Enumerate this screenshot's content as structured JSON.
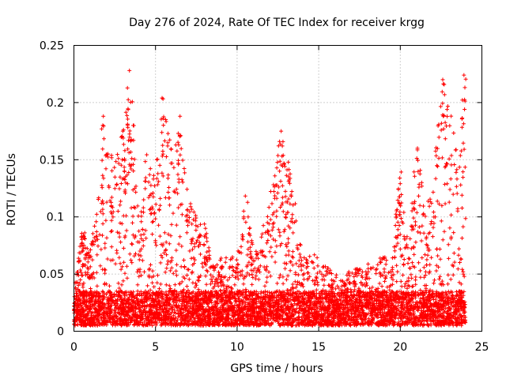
{
  "chart_data": {
    "type": "scatter",
    "title": "Day 276 of 2024, Rate Of TEC Index for receiver krgg",
    "xlabel": "GPS time / hours",
    "ylabel": "ROTI / TECUs",
    "xlim": [
      0,
      25
    ],
    "ylim": [
      0,
      0.25
    ],
    "grid": true,
    "x_ticks": [
      "0",
      "5",
      "10",
      "15",
      "20",
      "25"
    ],
    "y_ticks": [
      "0",
      "0.05",
      "0.1",
      "0.15",
      "0.2",
      "0.25"
    ],
    "marker": "+",
    "color": "#ff0000",
    "series": [
      {
        "name": "ROTI",
        "profile_hours": [
          0,
          0.5,
          1,
          1.5,
          2,
          2.5,
          3,
          3.5,
          4,
          4.5,
          5,
          5.5,
          6,
          6.5,
          7,
          7.5,
          8,
          8.5,
          9,
          9.5,
          10,
          10.5,
          11,
          11.5,
          12,
          12.5,
          13,
          13.5,
          14,
          14.5,
          15,
          15.5,
          16,
          16.5,
          17,
          17.5,
          18,
          18.5,
          19,
          19.5,
          20,
          20.5,
          21,
          21.5,
          22,
          22.5,
          23,
          23.5,
          24
        ],
        "profile_upper_roti": [
          0.035,
          0.095,
          0.07,
          0.12,
          0.16,
          0.15,
          0.175,
          0.228,
          0.09,
          0.175,
          0.14,
          0.2,
          0.16,
          0.185,
          0.12,
          0.1,
          0.095,
          0.06,
          0.065,
          0.065,
          0.065,
          0.13,
          0.07,
          0.09,
          0.12,
          0.175,
          0.165,
          0.12,
          0.07,
          0.07,
          0.065,
          0.06,
          0.05,
          0.045,
          0.055,
          0.055,
          0.06,
          0.065,
          0.065,
          0.065,
          0.15,
          0.07,
          0.175,
          0.11,
          0.13,
          0.22,
          0.21,
          0.15,
          0.225
        ],
        "typical_roti_range": [
          0.005,
          0.035
        ],
        "peaks": [
          {
            "hour": 1.8,
            "roti": 0.188
          },
          {
            "hour": 3.0,
            "roti": 0.175
          },
          {
            "hour": 3.4,
            "roti": 0.228
          },
          {
            "hour": 5.4,
            "roti": 0.204
          },
          {
            "hour": 6.5,
            "roti": 0.188
          },
          {
            "hour": 12.7,
            "roti": 0.175
          },
          {
            "hour": 22.6,
            "roti": 0.22
          },
          {
            "hour": 23.9,
            "roti": 0.224
          }
        ],
        "samples_per_hour": 260
      }
    ]
  }
}
